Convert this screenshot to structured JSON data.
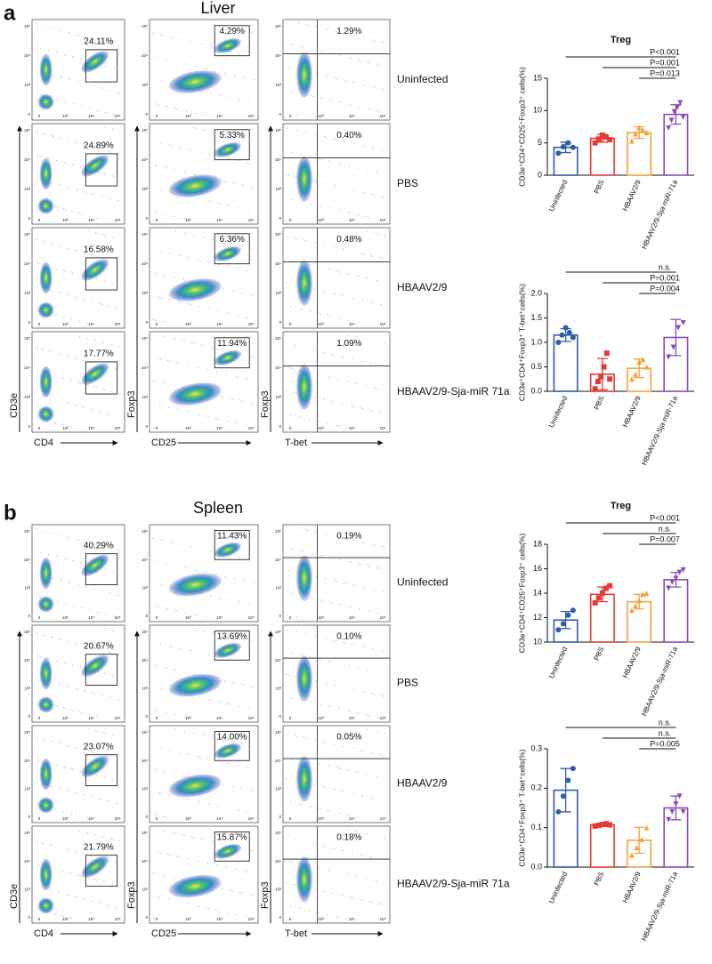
{
  "flow": {
    "row_labels": [
      "Uninfected",
      "PBS",
      "HBAAV2/9",
      "HBAAV2/9-Sja-miR 71a"
    ],
    "columns": [
      {
        "y": "CD3e",
        "x": "CD4"
      },
      {
        "y": "Foxp3",
        "x": "CD25"
      },
      {
        "y": "Foxp3",
        "x": "T-bet"
      }
    ],
    "ticks": [
      "0",
      "10³",
      "10⁴",
      "10⁵"
    ]
  },
  "panels": [
    {
      "letter": "a",
      "title": "Liver",
      "gates": [
        [
          "24.11%",
          "4.29%",
          "1.29%"
        ],
        [
          "24.89%",
          "5.33%",
          "0.40%"
        ],
        [
          "16.58%",
          "6.36%",
          "0.48%"
        ],
        [
          "17.77%",
          "11.94%",
          "1.09%"
        ]
      ]
    },
    {
      "letter": "b",
      "title": "Spleen",
      "gates": [
        [
          "40.29%",
          "11.43%",
          "0.19%"
        ],
        [
          "20.67%",
          "13.69%",
          "0.10%"
        ],
        [
          "23.07%",
          "14.00%",
          "0.05%"
        ],
        [
          "21.79%",
          "15.87%",
          "0.18%"
        ]
      ]
    }
  ],
  "chart_data": [
    {
      "type": "bar",
      "title": "Treg",
      "ylabel": "CD3e⁺CD4⁺CD25⁺Foxp3⁺ cells(%)",
      "categories": [
        "Uninfected",
        "PBS",
        "HBAAV2/9",
        "HBAAV2/9-Sja-miR-71a"
      ],
      "colors": [
        "#2f5ca8",
        "#e23a35",
        "#f2a33a",
        "#8b4bb3"
      ],
      "markers": [
        "circle",
        "square",
        "triangle",
        "triangle-down"
      ],
      "values": [
        4.3,
        5.7,
        6.6,
        9.4
      ],
      "errors": [
        0.8,
        0.6,
        0.9,
        1.5
      ],
      "points": [
        [
          3.4,
          4.4,
          5.0,
          4.3
        ],
        [
          5.0,
          5.6,
          6.2,
          5.9,
          5.5
        ],
        [
          5.3,
          6.4,
          7.4,
          7.0,
          6.6
        ],
        [
          7.3,
          8.5,
          9.8,
          10.5,
          11.2,
          9.0
        ]
      ],
      "ylim": [
        0,
        15
      ],
      "yticks": [
        0,
        5,
        10,
        15
      ],
      "comparisons": [
        {
          "label": "P<0.001",
          "groups": [
            "Uninfected",
            "HBAAV2/9-Sja-miR-71a"
          ]
        },
        {
          "label": "P=0.001",
          "groups": [
            "PBS",
            "HBAAV2/9-Sja-miR-71a"
          ]
        },
        {
          "label": "P=0.013",
          "groups": [
            "HBAAV2/9",
            "HBAAV2/9-Sja-miR-71a"
          ]
        }
      ]
    },
    {
      "type": "bar",
      "ylabel": "CD3e⁺CD4⁺Foxp3⁺ T-bet⁺cells(%)",
      "categories": [
        "Uninfected",
        "PBS",
        "HBAAV2/9",
        "HBAAV2/9-Sja-miR-71a"
      ],
      "colors": [
        "#2f5ca8",
        "#e23a35",
        "#f2a33a",
        "#8b4bb3"
      ],
      "markers": [
        "circle",
        "square",
        "triangle",
        "triangle-down"
      ],
      "values": [
        1.15,
        0.35,
        0.47,
        1.1
      ],
      "errors": [
        0.13,
        0.32,
        0.19,
        0.37
      ],
      "points": [
        [
          1.0,
          1.15,
          1.3,
          1.2,
          1.1
        ],
        [
          0.05,
          0.2,
          0.3,
          0.5,
          0.78,
          0.25
        ],
        [
          0.25,
          0.35,
          0.6,
          0.65,
          0.5
        ],
        [
          0.7,
          0.9,
          1.3,
          1.4
        ]
      ],
      "ylim": [
        0,
        2
      ],
      "yticks": [
        {
          "value": 0,
          "label": "0.0"
        },
        {
          "value": 0.5,
          "label": "0.5"
        },
        {
          "value": 1,
          "label": "1.0"
        },
        {
          "value": 1.5,
          "label": "1.5"
        },
        {
          "value": 2,
          "label": "2.0"
        }
      ],
      "comparisons": [
        {
          "label": "n.s.",
          "groups": [
            "Uninfected",
            "HBAAV2/9-Sja-miR-71a"
          ]
        },
        {
          "label": "P=0.001",
          "groups": [
            "PBS",
            "HBAAV2/9-Sja-miR-71a"
          ]
        },
        {
          "label": "P=0.004",
          "groups": [
            "HBAAV2/9",
            "HBAAV2/9-Sja-miR-71a"
          ]
        }
      ]
    },
    {
      "type": "bar",
      "title": "Treg",
      "ylabel": "CD3e⁺CD4⁺CD25⁺Foxp3⁺ cells(%)",
      "categories": [
        "Uninfected",
        "PBS",
        "HBAAV2/9",
        "HBAAV2/9-Sja-miR-71a"
      ],
      "colors": [
        "#2f5ca8",
        "#e23a35",
        "#f2a33a",
        "#8b4bb3"
      ],
      "markers": [
        "circle",
        "square",
        "triangle",
        "triangle-down"
      ],
      "values": [
        11.8,
        13.9,
        13.3,
        15.1
      ],
      "errors": [
        0.7,
        0.6,
        0.6,
        0.6
      ],
      "points": [
        [
          11.0,
          11.5,
          12.2,
          12.6
        ],
        [
          13.2,
          13.6,
          14.0,
          14.4,
          14.6
        ],
        [
          12.6,
          13.0,
          13.4,
          13.9,
          14.0
        ],
        [
          14.4,
          14.9,
          15.2,
          15.7,
          15.9
        ]
      ],
      "ylim": [
        10,
        18
      ],
      "yticks": [
        10,
        12,
        14,
        16,
        18
      ],
      "comparisons": [
        {
          "label": "P<0.001",
          "groups": [
            "Uninfected",
            "HBAAV2/9-Sja-miR-71a"
          ]
        },
        {
          "label": "n.s.",
          "groups": [
            "PBS",
            "HBAAV2/9-Sja-miR-71a"
          ]
        },
        {
          "label": "P=0.007",
          "groups": [
            "HBAAV2/9",
            "HBAAV2/9-Sja-miR-71a"
          ]
        }
      ]
    },
    {
      "type": "bar",
      "ylabel": "CD3e⁺CD4⁺Foxp3⁺ T-bet⁺cells(%)",
      "categories": [
        "Uninfected",
        "PBS",
        "HBAAV2/9",
        "HBAAV2/9-Sja-miR-71a"
      ],
      "colors": [
        "#2f5ca8",
        "#e23a35",
        "#f2a33a",
        "#8b4bb3"
      ],
      "markers": [
        "circle",
        "square",
        "triangle",
        "triangle-down"
      ],
      "values": [
        0.195,
        0.107,
        0.068,
        0.15
      ],
      "errors": [
        0.055,
        0.004,
        0.033,
        0.03
      ],
      "points": [
        [
          0.14,
          0.18,
          0.22,
          0.25
        ],
        [
          0.104,
          0.106,
          0.108,
          0.11,
          0.107
        ],
        [
          0.03,
          0.05,
          0.07,
          0.1
        ],
        [
          0.12,
          0.14,
          0.16,
          0.18,
          0.14
        ]
      ],
      "ylim": [
        0,
        0.3
      ],
      "yticks": [
        {
          "value": 0,
          "label": "0.0"
        },
        {
          "value": 0.1,
          "label": "0.1"
        },
        {
          "value": 0.2,
          "label": "0.2"
        },
        {
          "value": 0.3,
          "label": "0.3"
        }
      ],
      "comparisons": [
        {
          "label": "n.s.",
          "groups": [
            "Uninfected",
            "HBAAV2/9-Sja-miR-71a"
          ]
        },
        {
          "label": "n.s.",
          "groups": [
            "PBS",
            "HBAAV2/9-Sja-miR-71a"
          ]
        },
        {
          "label": "P=0.005",
          "groups": [
            "HBAAV2/9",
            "HBAAV2/9-Sja-miR-71a"
          ]
        }
      ]
    }
  ]
}
